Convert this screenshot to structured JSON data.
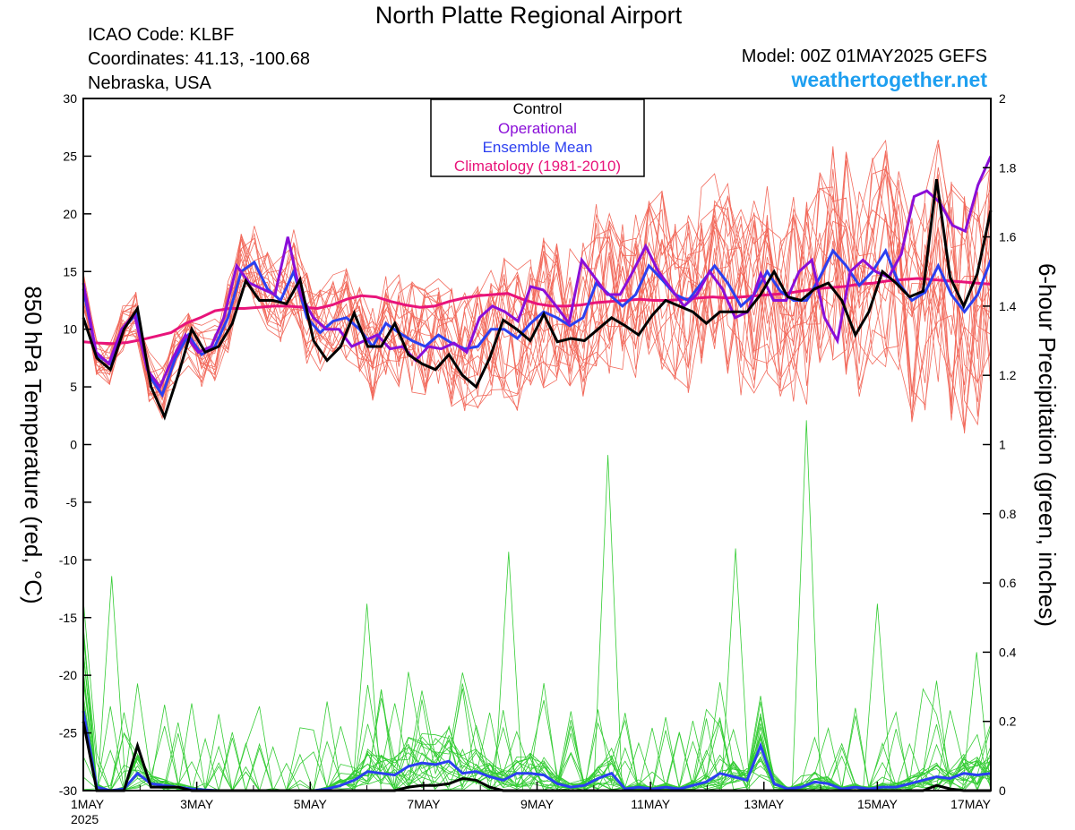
{
  "header": {
    "title": "North Platte Regional Airport",
    "icao": "ICAO Code: KLBF",
    "coords": "Coordinates: 41.13, -100.68",
    "location": "Nebraska, USA",
    "model": "Model: 00Z 01MAY2025 GEFS",
    "site": "weathertogether.net"
  },
  "legend": {
    "control": "Control",
    "operational": "Operational",
    "mean": "Ensemble Mean",
    "climo": "Climatology (1981-2010)"
  },
  "colors": {
    "control": "#000000",
    "operational": "#8a0ed8",
    "mean": "#2b3ff0",
    "climo": "#e8147a",
    "members_temp": "#f26a5c",
    "members_precip": "#33cc33",
    "site": "#1e9ff0"
  },
  "chart_data": {
    "type": "line",
    "x_unit": "6-hour steps from 00Z 01MAY2025",
    "x_ticks": [
      {
        "step": 0,
        "label": "1MAY",
        "sub": "2025"
      },
      {
        "step": 8,
        "label": "3MAY"
      },
      {
        "step": 16,
        "label": "5MAY"
      },
      {
        "step": 24,
        "label": "7MAY"
      },
      {
        "step": 32,
        "label": "9MAY"
      },
      {
        "step": 40,
        "label": "11MAY"
      },
      {
        "step": 48,
        "label": "13MAY"
      },
      {
        "step": 56,
        "label": "15MAY"
      },
      {
        "step": 64,
        "label": "17MAY"
      }
    ],
    "y_left": {
      "label": "850 hPa Temperature (red, °C)",
      "range": [
        -30,
        30
      ],
      "ticks": [
        "30",
        "25",
        "20",
        "15",
        "10",
        "5",
        "0",
        "-5",
        "-10",
        "-15",
        "-20",
        "-25",
        "-30"
      ]
    },
    "y_right": {
      "label": "6-hour Precipitation (green, inches)",
      "range": [
        0,
        2
      ],
      "ticks": [
        "2",
        "1.8",
        "1.6",
        "1.4",
        "1.2",
        "1",
        "0.8",
        "0.6",
        "0.4",
        "0.2",
        "0"
      ]
    },
    "temperature": {
      "control": [
        11,
        7.5,
        6.5,
        10,
        11.8,
        5,
        2.4,
        6,
        10,
        8,
        8.5,
        10.5,
        14.2,
        12.5,
        12.5,
        12.2,
        14.3,
        9,
        7.3,
        8.5,
        11.4,
        8.5,
        8.5,
        10.5,
        7.8,
        7,
        6.5,
        7.8,
        6,
        5,
        7.5,
        10.8,
        10,
        9,
        11.3,
        8.9,
        9.2,
        9,
        10,
        11,
        10.3,
        9.5,
        11.2,
        12.5,
        12,
        11.5,
        10.5,
        11.5,
        11.5,
        11.5,
        13,
        15,
        12.8,
        12.5,
        13.5,
        14,
        12.5,
        9.5,
        11.5,
        15,
        14,
        12.8,
        13.3,
        23,
        14.5,
        12,
        14.8,
        20.3
      ],
      "operational": [
        14,
        8,
        7,
        10,
        11.3,
        6.5,
        5,
        7.5,
        9.5,
        8,
        8.5,
        11,
        15.5,
        14,
        13.5,
        13,
        18,
        13,
        11,
        10,
        10,
        8.5,
        9,
        9.5,
        8.3,
        8.5,
        7.3,
        8.5,
        8.3,
        8.8,
        8,
        11,
        12,
        11.5,
        10.7,
        13.7,
        13.4,
        12,
        10.5,
        16,
        14.5,
        13,
        13,
        15,
        17.2,
        15,
        13.5,
        12,
        13,
        15,
        13.5,
        11,
        11.5,
        14.8,
        12.5,
        12.5,
        15,
        16,
        11,
        9,
        15,
        16,
        15,
        14.5,
        16.5,
        21.5,
        22,
        21,
        19,
        18.5,
        22.5,
        25
      ],
      "mean": [
        13.5,
        7.8,
        7,
        10,
        11.3,
        6,
        4.3,
        7.5,
        9.5,
        7.8,
        8.5,
        11,
        15,
        15.8,
        13.5,
        12.5,
        15,
        11,
        9.7,
        10.7,
        11,
        10,
        8.5,
        10.5,
        9.7,
        9,
        8.5,
        9.5,
        8.8,
        8.3,
        8.5,
        10,
        10,
        9.2,
        10.5,
        11.5,
        11,
        10.3,
        11,
        14,
        13,
        12,
        13,
        15.5,
        14.3,
        13,
        12.5,
        14,
        15.5,
        14,
        12,
        13,
        15,
        13.3,
        12.5,
        12.5,
        14.5,
        16.8,
        15.5,
        13.8,
        15,
        16.8,
        14,
        12.5,
        13.2,
        15.5,
        13,
        11.5,
        13,
        16
      ],
      "climo": [
        8.9,
        8.8,
        8.75,
        8.85,
        9.1,
        9.4,
        9.7,
        10.5,
        11,
        11.6,
        11.8,
        11.8,
        11.9,
        12,
        12,
        11.9,
        11.8,
        12.1,
        12.6,
        12.9,
        12.8,
        12.4,
        12.1,
        11.9,
        12,
        12.4,
        12.7,
        12.9,
        13,
        13.1,
        12.6,
        12.2,
        12,
        12,
        12.1,
        12.3,
        12.4,
        12.5,
        12.6,
        12.5,
        12.5,
        12.6,
        12.7,
        12.8,
        12.7,
        12.8,
        12.9,
        13,
        13.1,
        13.3,
        13.5,
        13.6,
        13.7,
        13.9,
        14,
        14.2,
        14.3,
        14.4,
        14.3,
        14.2,
        14.1,
        14,
        13.9
      ]
    },
    "precipitation": {
      "control": [
        0.2,
        0,
        0,
        0,
        0.13,
        0.01,
        0.01,
        0.01,
        0,
        0,
        0,
        0,
        0,
        0,
        0,
        0,
        0,
        0,
        0,
        0,
        0,
        0,
        0,
        0,
        0.01,
        0.015,
        0.015,
        0.02,
        0.035,
        0.03,
        0.01,
        0,
        0,
        0,
        0,
        0,
        0,
        0,
        0,
        0,
        0,
        0,
        0,
        0,
        0,
        0,
        0,
        0,
        0,
        0,
        0,
        0,
        0,
        0,
        0,
        0,
        0,
        0,
        0,
        0,
        0,
        0,
        0,
        0.015,
        0.005,
        0,
        0,
        0
      ],
      "mean": [
        0.23,
        0.01,
        0,
        0.005,
        0.05,
        0.02,
        0.015,
        0.01,
        0.005,
        0.002,
        0,
        0,
        0,
        0,
        0,
        0,
        0,
        0,
        0.005,
        0.015,
        0.03,
        0.055,
        0.05,
        0.045,
        0.07,
        0.08,
        0.075,
        0.085,
        0.05,
        0.055,
        0.04,
        0.03,
        0.05,
        0.05,
        0.045,
        0.02,
        0.01,
        0.015,
        0.035,
        0.05,
        0.005,
        0.01,
        0.005,
        0.01,
        0.005,
        0.015,
        0.025,
        0.05,
        0.04,
        0.03,
        0.13,
        0.02,
        0.005,
        0.01,
        0.025,
        0.02,
        0.005,
        0.01,
        0.005,
        0.01,
        0.01,
        0.02,
        0.03,
        0.04,
        0.035,
        0.05,
        0.045,
        0.05
      ]
    }
  }
}
